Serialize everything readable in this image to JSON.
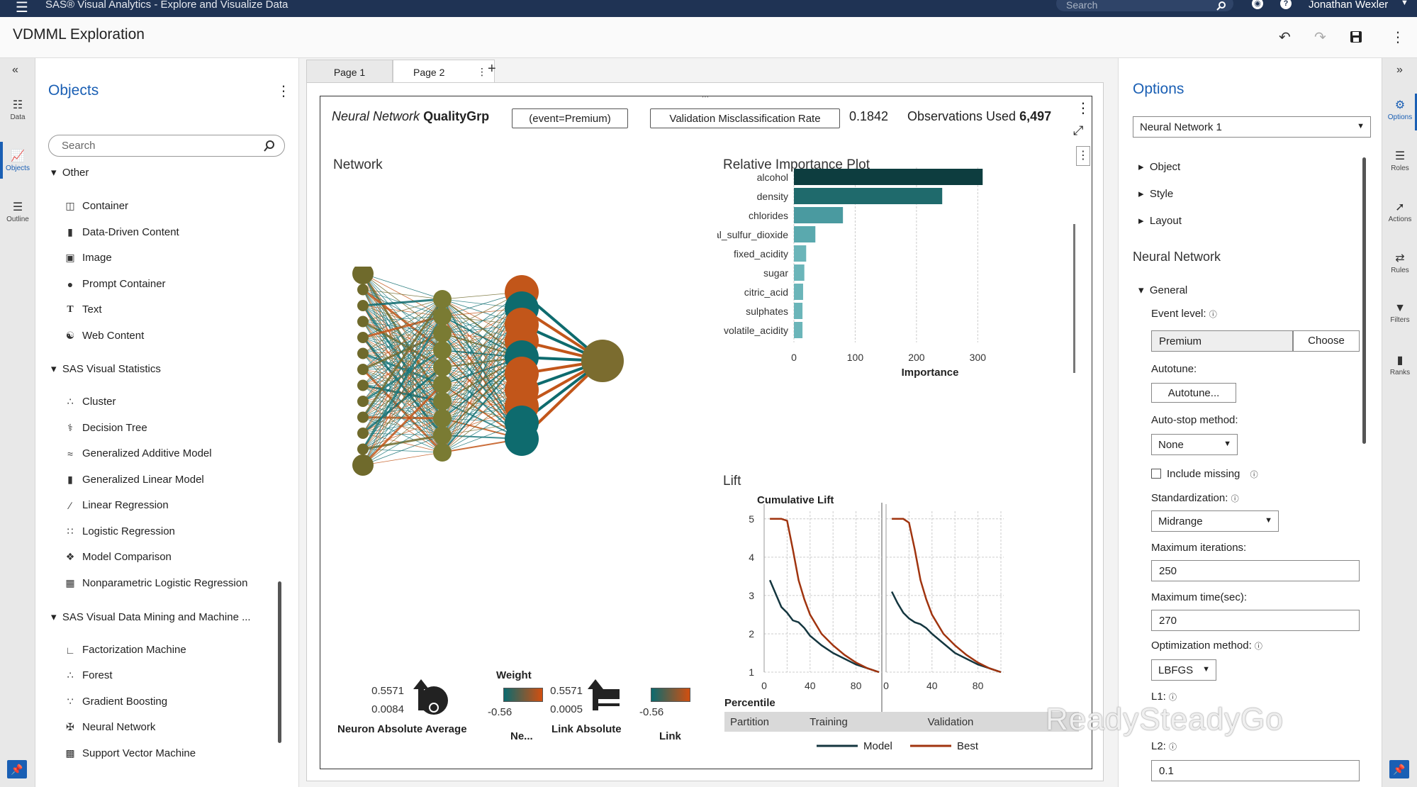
{
  "topbar": {
    "menu_icon": "hamburger-icon",
    "app_title": "SAS® Visual Analytics - Explore and Visualize Data",
    "search_placeholder": "Search",
    "user_name": "Jonathan Wexler"
  },
  "header": {
    "report_title": "VDMML Exploration"
  },
  "left_rail": {
    "items": [
      {
        "label": "Data",
        "icon": "database-icon"
      },
      {
        "label": "Objects",
        "icon": "chart-icon"
      },
      {
        "label": "Outline",
        "icon": "list-icon"
      }
    ]
  },
  "objects_pane": {
    "title": "Objects",
    "search_placeholder": "Search",
    "group_other": "Other",
    "other_items": [
      "Container",
      "Data-Driven Content",
      "Image",
      "Prompt Container",
      "Text",
      "Web Content"
    ],
    "group_stats": "SAS Visual Statistics",
    "stats_items": [
      "Cluster",
      "Decision Tree",
      "Generalized Additive Model",
      "Generalized Linear Model",
      "Linear Regression",
      "Logistic Regression",
      "Model Comparison",
      "Nonparametric Logistic Regression"
    ],
    "group_dm": "SAS Visual Data Mining and Machine ...",
    "dm_items": [
      "Factorization Machine",
      "Forest",
      "Gradient Boosting",
      "Neural Network",
      "Support Vector Machine"
    ]
  },
  "tabs": [
    "Page 1",
    "Page 2"
  ],
  "report": {
    "model_type": "Neural Network",
    "target": "QualityGrp",
    "event_pill": "(event=Premium)",
    "metric_pill": "Validation Misclassification Rate",
    "metric_value": "0.1842",
    "obs_label": "Observations Used",
    "obs_value": "6,497",
    "network_title": "Network",
    "importance_title": "Relative Importance Plot",
    "lift_title": "Lift",
    "network_legend": {
      "neuron_max": "0.5571",
      "neuron_min": "0.0084",
      "neuron_label": "Neuron Absolute Average",
      "weight_title": "Weight",
      "weight_min": "-0.56",
      "ne_label": "Ne...",
      "link_max": "0.5571",
      "link_min": "0.0005",
      "link_label": "Link Absolute",
      "link_weight_min": "-0.56",
      "link_color_label": "Link"
    }
  },
  "chart_data": [
    {
      "type": "bar",
      "title": "Relative Importance Plot",
      "orientation": "horizontal",
      "categories": [
        "alcohol",
        "density",
        "chlorides",
        "total_sulfur_dioxide",
        "fixed_acidity",
        "sugar",
        "citric_acid",
        "sulphates",
        "volatile_acidity"
      ],
      "values": [
        308,
        242,
        80,
        35,
        20,
        17,
        15,
        14,
        14
      ],
      "xlabel": "Importance",
      "xticks": [
        0,
        100,
        200,
        300
      ],
      "xlim": [
        0,
        310
      ],
      "colors": [
        "#0d3d3f",
        "#1f6a6c",
        "#4a9aa0",
        "#5aa9ae",
        "#6bb5b9",
        "#6bb5b9",
        "#6bb5b9",
        "#6bb5b9",
        "#6bb5b9"
      ]
    },
    {
      "type": "line",
      "title": "Cumulative Lift",
      "xlabel": "Percentile",
      "xticks": [
        0,
        40,
        80
      ],
      "yticks": [
        1,
        2,
        3,
        4,
        5
      ],
      "ylim": [
        1,
        5.2
      ],
      "partition_label": "Partition",
      "panels": [
        {
          "name": "Training",
          "series": [
            {
              "name": "Model",
              "x": [
                5,
                10,
                15,
                20,
                25,
                30,
                35,
                40,
                50,
                60,
                70,
                80,
                90,
                100
              ],
              "y": [
                3.4,
                3.05,
                2.7,
                2.55,
                2.35,
                2.3,
                2.15,
                1.95,
                1.7,
                1.5,
                1.35,
                1.2,
                1.1,
                1.0
              ]
            },
            {
              "name": "Best",
              "x": [
                5,
                10,
                15,
                20,
                25,
                30,
                35,
                40,
                50,
                60,
                70,
                80,
                90,
                100
              ],
              "y": [
                5.0,
                5.0,
                5.0,
                4.95,
                4.2,
                3.4,
                2.9,
                2.5,
                2.0,
                1.7,
                1.45,
                1.25,
                1.1,
                1.0
              ]
            }
          ]
        },
        {
          "name": "Validation",
          "series": [
            {
              "name": "Model",
              "x": [
                5,
                10,
                15,
                20,
                25,
                30,
                35,
                40,
                50,
                60,
                70,
                80,
                90,
                100
              ],
              "y": [
                3.1,
                2.8,
                2.55,
                2.4,
                2.3,
                2.25,
                2.15,
                2.0,
                1.75,
                1.5,
                1.35,
                1.2,
                1.1,
                1.0
              ]
            },
            {
              "name": "Best",
              "x": [
                5,
                10,
                15,
                20,
                25,
                30,
                35,
                40,
                50,
                60,
                70,
                80,
                90,
                100
              ],
              "y": [
                5.0,
                5.0,
                5.0,
                4.9,
                4.2,
                3.4,
                2.9,
                2.5,
                2.0,
                1.7,
                1.45,
                1.25,
                1.1,
                1.0
              ]
            }
          ]
        }
      ],
      "legend": [
        "Model",
        "Best"
      ],
      "legend_position": "bottom",
      "colors": {
        "Model": "#14363f",
        "Best": "#a0340f"
      }
    }
  ],
  "options_pane": {
    "title": "Options",
    "object_select": "Neural Network 1",
    "sections": [
      "Object",
      "Style",
      "Layout"
    ],
    "nn_header": "Neural Network",
    "general": "General",
    "event_level_label": "Event level:",
    "event_level_value": "Premium",
    "choose_button": "Choose",
    "autotune_label": "Autotune:",
    "autotune_button": "Autotune...",
    "autostop_label": "Auto-stop method:",
    "autostop_value": "None",
    "include_missing": "Include missing",
    "standardization_label": "Standardization:",
    "standardization_value": "Midrange",
    "max_iter_label": "Maximum iterations:",
    "max_iter_value": "250",
    "max_time_label": "Maximum time(sec):",
    "max_time_value": "270",
    "opt_method_label": "Optimization method:",
    "opt_method_value": "LBFGS",
    "l1_label": "L1:",
    "l2_label": "L2:",
    "l2_value": "0.1"
  },
  "right_rail": {
    "items": [
      {
        "label": "Options",
        "icon": "options-icon"
      },
      {
        "label": "Roles",
        "icon": "roles-icon"
      },
      {
        "label": "Actions",
        "icon": "actions-icon"
      },
      {
        "label": "Rules",
        "icon": "rules-icon"
      },
      {
        "label": "Filters",
        "icon": "filter-icon"
      },
      {
        "label": "Ranks",
        "icon": "ranks-icon"
      }
    ]
  },
  "watermark": "ReadySteadyGo"
}
